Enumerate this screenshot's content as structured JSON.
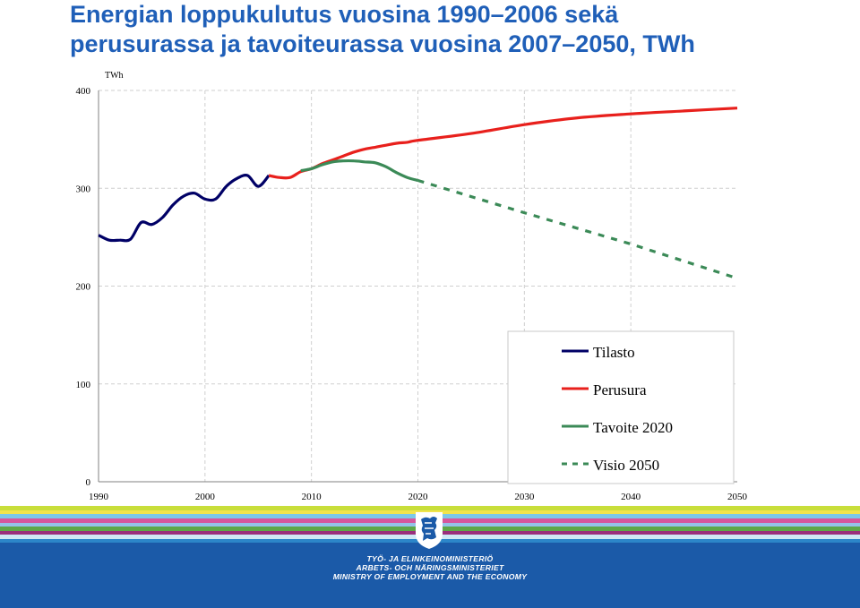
{
  "title": {
    "line1": "Energian loppukulutus vuosina 1990–2006 sekä",
    "line2": "perusurassa ja tavoiteurassa vuosina 2007–2050, TWh"
  },
  "chart_data": {
    "type": "line",
    "ylabel": "TWh",
    "xlim": [
      1990,
      2050
    ],
    "ylim": [
      0,
      400
    ],
    "x_ticks": [
      "1990",
      "2000",
      "2010",
      "2020",
      "2030",
      "2040",
      "2050"
    ],
    "y_ticks": [
      "0",
      "100",
      "200",
      "300",
      "400"
    ],
    "grid": "dashed vertical and horizontal",
    "legend_position": "bottom-right",
    "series": [
      {
        "name": "Tilasto",
        "color": "#000066",
        "style": "solid",
        "points": [
          [
            1990,
            252
          ],
          [
            1991,
            247
          ],
          [
            1992,
            247
          ],
          [
            1993,
            248
          ],
          [
            1994,
            265
          ],
          [
            1995,
            263
          ],
          [
            1996,
            270
          ],
          [
            1997,
            283
          ],
          [
            1998,
            292
          ],
          [
            1999,
            295
          ],
          [
            2000,
            289
          ],
          [
            2001,
            289
          ],
          [
            2002,
            302
          ],
          [
            2003,
            310
          ],
          [
            2004,
            313
          ],
          [
            2005,
            302
          ],
          [
            2006,
            313
          ]
        ]
      },
      {
        "name": "Perusura",
        "color": "#e8201c",
        "style": "solid",
        "points": [
          [
            2006,
            313
          ],
          [
            2007,
            311
          ],
          [
            2008,
            311
          ],
          [
            2009,
            317
          ],
          [
            2010,
            320
          ],
          [
            2011,
            325
          ],
          [
            2012,
            329
          ],
          [
            2013,
            333
          ],
          [
            2014,
            337
          ],
          [
            2015,
            340
          ],
          [
            2016,
            342
          ],
          [
            2017,
            344
          ],
          [
            2018,
            346
          ],
          [
            2019,
            347
          ],
          [
            2020,
            349
          ],
          [
            2025,
            356
          ],
          [
            2030,
            365
          ],
          [
            2035,
            372
          ],
          [
            2040,
            376
          ],
          [
            2045,
            379
          ],
          [
            2050,
            382
          ]
        ]
      },
      {
        "name": "Tavoite 2020",
        "color": "#3b8a57",
        "style": "solid",
        "points": [
          [
            2009,
            318
          ],
          [
            2010,
            320
          ],
          [
            2011,
            324
          ],
          [
            2012,
            327
          ],
          [
            2013,
            328
          ],
          [
            2014,
            328
          ],
          [
            2015,
            327
          ],
          [
            2016,
            326
          ],
          [
            2017,
            322
          ],
          [
            2018,
            316
          ],
          [
            2019,
            311
          ],
          [
            2020,
            308
          ]
        ]
      },
      {
        "name": "Visio 2050",
        "color": "#3b8a57",
        "style": "dashed",
        "points": [
          [
            2020,
            308
          ],
          [
            2030,
            275
          ],
          [
            2040,
            243
          ],
          [
            2050,
            208
          ]
        ]
      }
    ]
  },
  "footer": {
    "ministry_fi": "TYÖ- JA ELINKEINOMINISTERIÖ",
    "ministry_sv": "ARBETS- OCH NÄRINGSMINISTERIET",
    "ministry_en": "MINISTRY OF EMPLOYMENT AND THE ECONOMY",
    "stripe_colors": [
      "#ffffff",
      "#c8de3a",
      "#f2e44c",
      "#7cc8e8",
      "#d6579c",
      "#95c3e8",
      "#5ea847",
      "#9a2f7c",
      "#cfe8f5",
      "#2c86c9"
    ],
    "crest_icon": "lion-crest-icon"
  }
}
